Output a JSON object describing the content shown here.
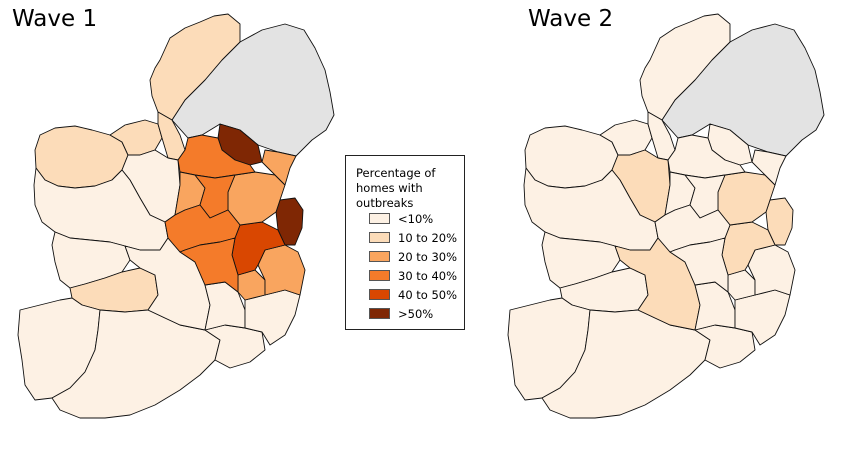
{
  "maps": [
    {
      "title": "Wave 1",
      "regions": {
        "northern-ireland": "#e3e3e3",
        "donegal": "#fcdcb9",
        "mayo": "#fcdcb9",
        "sligo": "#fcdcb9",
        "leitrim": "#fcdcb9",
        "roscommon": "#fdf1e4",
        "galway": "#fdf1e4",
        "clare": "#fdf1e4",
        "limerick": "#fcdcb9",
        "kerry": "#fdf1e4",
        "cork": "#fdf1e4",
        "waterford": "#fdf1e4",
        "tipperary": "#fdf1e4",
        "kilkenny": "#fdf1e4",
        "wexford": "#fdf1e4",
        "carlow": "#f9a55f",
        "wicklow": "#f9a55f",
        "dublin": "#7f2704",
        "kildare": "#d94701",
        "meath": "#f9a55f",
        "louth": "#f9a55f",
        "monaghan": "#7f2704",
        "cavan": "#f47b2a",
        "longford": "#f9a55f",
        "westmeath": "#f47b2a",
        "offaly": "#f47b2a",
        "laois": "#f47b2a"
      }
    },
    {
      "title": "Wave 2",
      "regions": {
        "northern-ireland": "#e3e3e3",
        "donegal": "#fdf1e4",
        "mayo": "#fdf1e4",
        "sligo": "#fdf1e4",
        "leitrim": "#fdf1e4",
        "roscommon": "#fcdcb9",
        "galway": "#fdf1e4",
        "clare": "#fdf1e4",
        "limerick": "#fdf1e4",
        "kerry": "#fdf1e4",
        "cork": "#fdf1e4",
        "waterford": "#fdf1e4",
        "tipperary": "#fcdcb9",
        "kilkenny": "#fdf1e4",
        "wexford": "#fdf1e4",
        "carlow": "#fdf1e4",
        "wicklow": "#fdf1e4",
        "dublin": "#fcdcb9",
        "kildare": "#fcdcb9",
        "meath": "#fcdcb9",
        "louth": "#fdf1e4",
        "monaghan": "#fdf1e4",
        "cavan": "#fdf1e4",
        "longford": "#fdf1e4",
        "westmeath": "#fdf1e4",
        "offaly": "#fdf1e4",
        "laois": "#fdf1e4"
      }
    }
  ],
  "legend": {
    "title": "Percentage of homes with outbreaks",
    "items": [
      {
        "label": "<10%",
        "color": "#fdf1e4"
      },
      {
        "label": "10 to 20%",
        "color": "#fcdcb9"
      },
      {
        "label": "20 to 30%",
        "color": "#f9a55f"
      },
      {
        "label": "30 to 40%",
        "color": "#f47b2a"
      },
      {
        "label": "40 to 50%",
        "color": "#d94701"
      },
      {
        "label": ">50%",
        "color": "#7f2704"
      }
    ]
  }
}
